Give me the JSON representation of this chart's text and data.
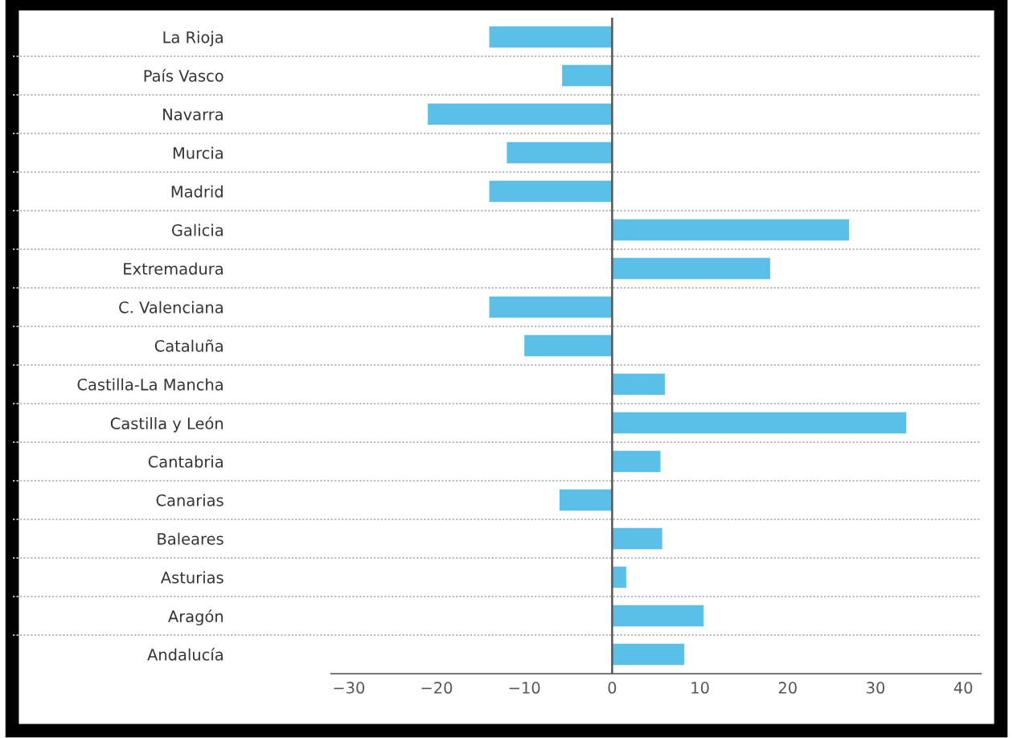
{
  "chart_data": {
    "type": "bar",
    "orientation": "horizontal",
    "categories": [
      "La Rioja",
      "País Vasco",
      "Navarra",
      "Murcia",
      "Madrid",
      "Galicia",
      "Extremadura",
      "C. Valenciana",
      "Cataluña",
      "Castilla-La Mancha",
      "Castilla y León",
      "Cantabria",
      "Canarias",
      "Baleares",
      "Asturias",
      "Aragón",
      "Andalucía"
    ],
    "values": [
      -14,
      -5.7,
      -21,
      -12,
      -14,
      27,
      18,
      -14,
      -10,
      6,
      33.5,
      5.5,
      -6,
      5.7,
      1.6,
      10.4,
      8.2
    ],
    "color": "#5bc0e8",
    "xlim": [
      -32,
      42
    ],
    "xticks": [
      {
        "value": -30,
        "label": "−30"
      },
      {
        "value": -20,
        "label": "−20"
      },
      {
        "value": -10,
        "label": "−10"
      },
      0,
      10,
      20,
      30,
      40
    ],
    "grid": "y",
    "ref_lines": [
      {
        "axis": "x",
        "value": 0,
        "label": null,
        "color": "#555555"
      }
    ]
  }
}
